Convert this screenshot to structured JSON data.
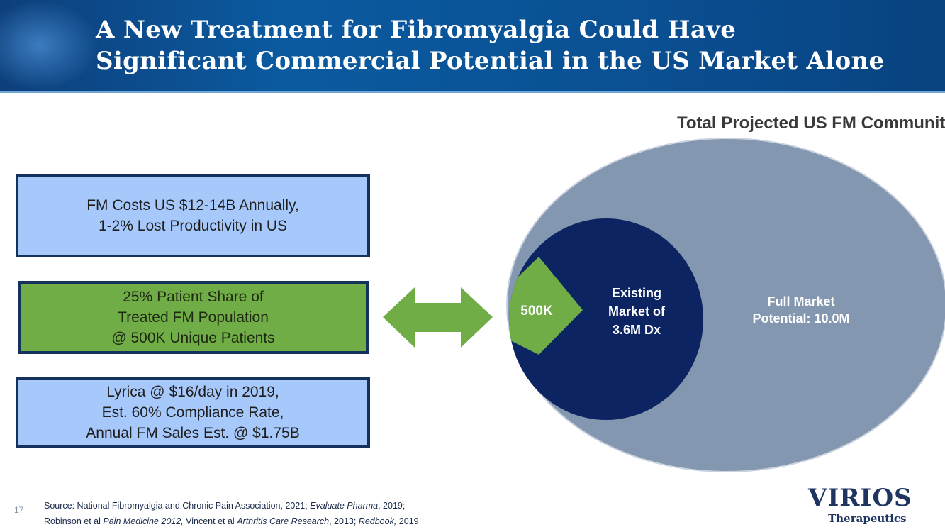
{
  "header": {
    "title_line1": "A New Treatment for Fibromyalgia Could Have",
    "title_line2": "Significant Commercial Potential in the US Market Alone"
  },
  "boxes": [
    {
      "line1": "FM Costs US $12-14B Annually,",
      "line2": "1-2% Lost Productivity in US"
    },
    {
      "line1": "25% Patient Share of",
      "line2": "Treated FM Population",
      "line3": "@ 500K Unique Patients"
    },
    {
      "line1": "Lyrica @ $16/day in 2019,",
      "line2": "Est. 60% Compliance Rate,",
      "line3": "Annual FM Sales Est. @ $1.75B"
    }
  ],
  "diagram": {
    "title": "Total Projected US FM Community",
    "outer": {
      "line1": "Full Market",
      "line2": "Potential: 10.0M",
      "color": "#8497b0"
    },
    "inner": {
      "line1": "Existing",
      "line2": "Market of",
      "line3": "3.6M Dx",
      "color": "#0c2462"
    },
    "segment": {
      "label": "500K",
      "color": "#70ad47"
    }
  },
  "footer": {
    "page": "17",
    "source_line1": "Source: National Fibromyalgia and Chronic Pain Association, 2021; ",
    "source_l1_ital": "Evaluate Pharma",
    "source_l1_end": ", 2019;",
    "source_line2": "Robinson et al ",
    "s2_i1": "Pain Medicine 2012,",
    "s2_t2": " Vincent et al ",
    "s2_i2": "Arthritis Care Research",
    "s2_t3": ", 2013; ",
    "s2_i3": "Redbook,",
    "s2_t4": " 2019"
  },
  "logo": {
    "name": "VIRIOS",
    "sub": "Therapeutics"
  }
}
